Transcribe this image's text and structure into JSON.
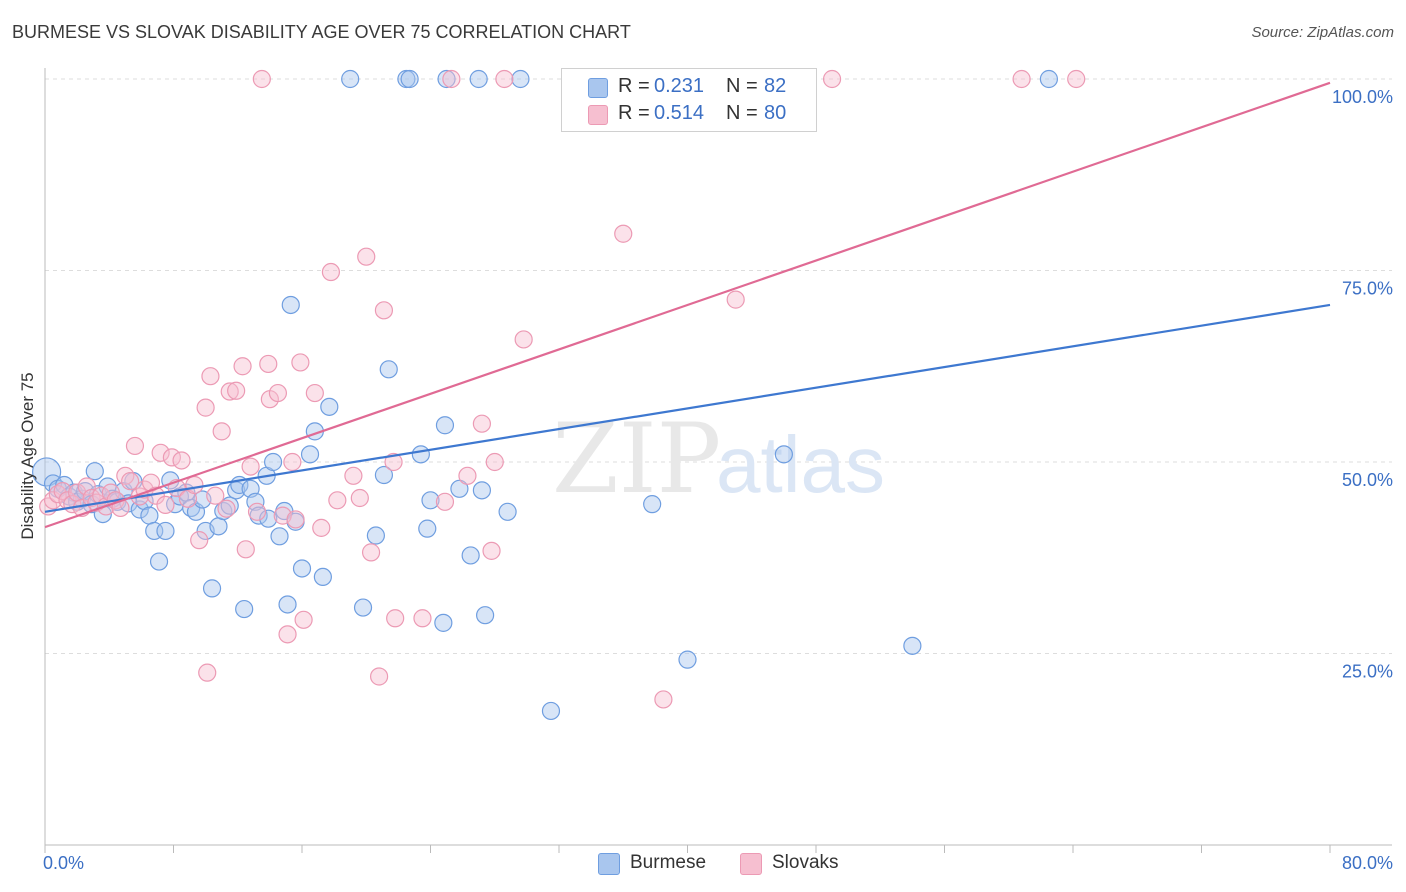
{
  "title": "BURMESE VS SLOVAK DISABILITY AGE OVER 75 CORRELATION CHART",
  "source": "Source: ZipAtlas.com",
  "watermark": {
    "zip": "ZIP",
    "atlas": "atlas"
  },
  "legend_top": {
    "burmese": {
      "r_key": "R = ",
      "r_val": "0.231",
      "n_key": "N = ",
      "n_val": "82"
    },
    "slovaks": {
      "r_key": "R = ",
      "r_val": "0.514",
      "n_key": "N = ",
      "n_val": "80"
    }
  },
  "legend_bottom": {
    "burmese": "Burmese",
    "slovaks": "Slovaks"
  },
  "colors": {
    "burmese_fill": "#a9c6ee",
    "burmese_stroke": "#6f9ee0",
    "burmese_line": "#3e78d0",
    "slovaks_fill": "#f6bfd0",
    "slovaks_stroke": "#ec9ab4",
    "slovaks_line": "#e06a94",
    "tick_label": "#3b6fc4",
    "grid": "#dddddd",
    "axis": "#bbbbbb"
  },
  "chart_data": {
    "type": "scatter",
    "xlabel": "",
    "ylabel": "Disability Age Over 75",
    "xlim": [
      0,
      80
    ],
    "ylim": [
      0,
      100
    ],
    "x_tick_labels": [
      {
        "value": 0,
        "label": "0.0%"
      },
      {
        "value": 80,
        "label": "80.0%"
      }
    ],
    "y_tick_labels": [
      {
        "value": 25,
        "label": "25.0%"
      },
      {
        "value": 50,
        "label": "50.0%"
      },
      {
        "value": 75,
        "label": "75.0%"
      },
      {
        "value": 100,
        "label": "100.0%"
      }
    ],
    "series": [
      {
        "name": "Burmese",
        "R": 0.231,
        "N": 82,
        "trend": {
          "x": [
            0,
            80
          ],
          "y": [
            43.5,
            70.5
          ]
        },
        "points": [
          {
            "x": 0.1,
            "y": 48.7,
            "big": true
          },
          {
            "x": 0.5,
            "y": 47.2
          },
          {
            "x": 0.8,
            "y": 46.5
          },
          {
            "x": 1.2,
            "y": 47.0
          },
          {
            "x": 1.5,
            "y": 45.5
          },
          {
            "x": 1.8,
            "y": 46.0
          },
          {
            "x": 2.0,
            "y": 44.8
          },
          {
            "x": 2.3,
            "y": 45.2
          },
          {
            "x": 2.5,
            "y": 46.2
          },
          {
            "x": 2.9,
            "y": 44.5
          },
          {
            "x": 3.1,
            "y": 48.8
          },
          {
            "x": 3.3,
            "y": 45.8
          },
          {
            "x": 3.6,
            "y": 43.2
          },
          {
            "x": 3.9,
            "y": 46.8
          },
          {
            "x": 4.2,
            "y": 45.2
          },
          {
            "x": 4.5,
            "y": 44.8
          },
          {
            "x": 4.9,
            "y": 46.2
          },
          {
            "x": 5.2,
            "y": 44.6
          },
          {
            "x": 5.5,
            "y": 47.5
          },
          {
            "x": 5.9,
            "y": 43.8
          },
          {
            "x": 6.2,
            "y": 44.9
          },
          {
            "x": 6.5,
            "y": 43.0
          },
          {
            "x": 6.8,
            "y": 41.0
          },
          {
            "x": 7.1,
            "y": 37.0
          },
          {
            "x": 7.5,
            "y": 41.0
          },
          {
            "x": 7.8,
            "y": 47.6
          },
          {
            "x": 8.1,
            "y": 44.5
          },
          {
            "x": 8.4,
            "y": 45.5
          },
          {
            "x": 8.8,
            "y": 46.0
          },
          {
            "x": 9.1,
            "y": 44.0
          },
          {
            "x": 9.4,
            "y": 43.5
          },
          {
            "x": 9.8,
            "y": 45.1
          },
          {
            "x": 10.0,
            "y": 41.0
          },
          {
            "x": 10.4,
            "y": 33.5
          },
          {
            "x": 10.8,
            "y": 41.6
          },
          {
            "x": 11.1,
            "y": 43.6
          },
          {
            "x": 11.5,
            "y": 44.3
          },
          {
            "x": 11.9,
            "y": 46.3
          },
          {
            "x": 12.1,
            "y": 47.0
          },
          {
            "x": 12.4,
            "y": 30.8
          },
          {
            "x": 12.8,
            "y": 46.5
          },
          {
            "x": 13.1,
            "y": 44.8
          },
          {
            "x": 13.3,
            "y": 43.0
          },
          {
            "x": 13.8,
            "y": 48.2
          },
          {
            "x": 13.9,
            "y": 42.6
          },
          {
            "x": 14.2,
            "y": 50.0
          },
          {
            "x": 14.6,
            "y": 40.3
          },
          {
            "x": 14.9,
            "y": 43.6
          },
          {
            "x": 15.1,
            "y": 31.4
          },
          {
            "x": 15.3,
            "y": 70.5
          },
          {
            "x": 15.6,
            "y": 42.2
          },
          {
            "x": 16.0,
            "y": 36.1
          },
          {
            "x": 16.5,
            "y": 51.0
          },
          {
            "x": 16.8,
            "y": 54.0
          },
          {
            "x": 17.3,
            "y": 35.0
          },
          {
            "x": 17.7,
            "y": 57.2
          },
          {
            "x": 19.0,
            "y": 100
          },
          {
            "x": 19.8,
            "y": 31.0
          },
          {
            "x": 20.6,
            "y": 40.4
          },
          {
            "x": 21.1,
            "y": 48.3
          },
          {
            "x": 21.4,
            "y": 62.1
          },
          {
            "x": 22.5,
            "y": 100
          },
          {
            "x": 22.7,
            "y": 100
          },
          {
            "x": 23.4,
            "y": 51.0
          },
          {
            "x": 23.8,
            "y": 41.3
          },
          {
            "x": 24.0,
            "y": 45.0
          },
          {
            "x": 24.8,
            "y": 29.0
          },
          {
            "x": 24.9,
            "y": 54.8
          },
          {
            "x": 25.0,
            "y": 100
          },
          {
            "x": 25.8,
            "y": 46.5
          },
          {
            "x": 26.5,
            "y": 37.8
          },
          {
            "x": 27.0,
            "y": 100
          },
          {
            "x": 27.2,
            "y": 46.3
          },
          {
            "x": 27.4,
            "y": 30.0
          },
          {
            "x": 28.8,
            "y": 43.5
          },
          {
            "x": 29.6,
            "y": 100
          },
          {
            "x": 31.5,
            "y": 17.5
          },
          {
            "x": 37.8,
            "y": 44.5
          },
          {
            "x": 40.0,
            "y": 24.2
          },
          {
            "x": 46.0,
            "y": 51.0
          },
          {
            "x": 54.0,
            "y": 26.0
          },
          {
            "x": 62.5,
            "y": 100
          }
        ]
      },
      {
        "name": "Slovaks",
        "R": 0.514,
        "N": 80,
        "trend": {
          "x": [
            0,
            80
          ],
          "y": [
            41.5,
            99.5
          ]
        },
        "points": [
          {
            "x": 0.2,
            "y": 44.2
          },
          {
            "x": 0.5,
            "y": 45.0
          },
          {
            "x": 0.8,
            "y": 45.8
          },
          {
            "x": 1.1,
            "y": 46.2
          },
          {
            "x": 1.4,
            "y": 45.0
          },
          {
            "x": 1.7,
            "y": 44.5
          },
          {
            "x": 2.0,
            "y": 46.0
          },
          {
            "x": 2.3,
            "y": 44.0
          },
          {
            "x": 2.6,
            "y": 46.8
          },
          {
            "x": 2.9,
            "y": 45.3
          },
          {
            "x": 3.2,
            "y": 44.7
          },
          {
            "x": 3.5,
            "y": 45.6
          },
          {
            "x": 3.8,
            "y": 44.2
          },
          {
            "x": 4.1,
            "y": 46.0
          },
          {
            "x": 4.4,
            "y": 45.0
          },
          {
            "x": 4.7,
            "y": 44.0
          },
          {
            "x": 5.0,
            "y": 48.2
          },
          {
            "x": 5.3,
            "y": 47.5
          },
          {
            "x": 5.6,
            "y": 52.1
          },
          {
            "x": 5.9,
            "y": 45.5
          },
          {
            "x": 6.2,
            "y": 46.4
          },
          {
            "x": 6.6,
            "y": 47.3
          },
          {
            "x": 6.9,
            "y": 45.6
          },
          {
            "x": 7.2,
            "y": 51.2
          },
          {
            "x": 7.5,
            "y": 44.4
          },
          {
            "x": 7.9,
            "y": 50.6
          },
          {
            "x": 8.2,
            "y": 46.6
          },
          {
            "x": 8.5,
            "y": 50.2
          },
          {
            "x": 8.9,
            "y": 45.2
          },
          {
            "x": 9.3,
            "y": 47.0
          },
          {
            "x": 9.6,
            "y": 39.8
          },
          {
            "x": 10.0,
            "y": 57.1
          },
          {
            "x": 10.1,
            "y": 22.5
          },
          {
            "x": 10.3,
            "y": 61.2
          },
          {
            "x": 10.6,
            "y": 45.6
          },
          {
            "x": 11.0,
            "y": 54.0
          },
          {
            "x": 11.3,
            "y": 43.9
          },
          {
            "x": 11.5,
            "y": 59.2
          },
          {
            "x": 11.9,
            "y": 59.3
          },
          {
            "x": 12.3,
            "y": 62.5
          },
          {
            "x": 12.5,
            "y": 38.6
          },
          {
            "x": 12.8,
            "y": 49.4
          },
          {
            "x": 13.2,
            "y": 43.5
          },
          {
            "x": 13.5,
            "y": 100
          },
          {
            "x": 13.9,
            "y": 62.8
          },
          {
            "x": 14.0,
            "y": 58.2
          },
          {
            "x": 14.5,
            "y": 59.0
          },
          {
            "x": 14.8,
            "y": 43.0
          },
          {
            "x": 15.1,
            "y": 27.5
          },
          {
            "x": 15.4,
            "y": 50.0
          },
          {
            "x": 15.6,
            "y": 42.5
          },
          {
            "x": 15.9,
            "y": 63.0
          },
          {
            "x": 16.1,
            "y": 29.4
          },
          {
            "x": 16.8,
            "y": 59.0
          },
          {
            "x": 17.2,
            "y": 41.4
          },
          {
            "x": 17.8,
            "y": 74.8
          },
          {
            "x": 18.2,
            "y": 45.0
          },
          {
            "x": 19.2,
            "y": 48.2
          },
          {
            "x": 19.6,
            "y": 45.3
          },
          {
            "x": 20.0,
            "y": 76.8
          },
          {
            "x": 20.3,
            "y": 38.2
          },
          {
            "x": 20.8,
            "y": 22.0
          },
          {
            "x": 21.1,
            "y": 69.8
          },
          {
            "x": 21.7,
            "y": 50.0
          },
          {
            "x": 21.8,
            "y": 29.6
          },
          {
            "x": 23.5,
            "y": 29.6
          },
          {
            "x": 24.9,
            "y": 44.8
          },
          {
            "x": 25.3,
            "y": 100
          },
          {
            "x": 26.3,
            "y": 48.2
          },
          {
            "x": 27.2,
            "y": 55.0
          },
          {
            "x": 27.8,
            "y": 38.4
          },
          {
            "x": 28.0,
            "y": 50.0
          },
          {
            "x": 28.6,
            "y": 100
          },
          {
            "x": 29.8,
            "y": 66.0
          },
          {
            "x": 36.0,
            "y": 79.8
          },
          {
            "x": 38.5,
            "y": 19.0
          },
          {
            "x": 43.0,
            "y": 71.2
          },
          {
            "x": 49.0,
            "y": 100
          },
          {
            "x": 60.8,
            "y": 100
          },
          {
            "x": 64.2,
            "y": 100
          }
        ]
      }
    ]
  }
}
